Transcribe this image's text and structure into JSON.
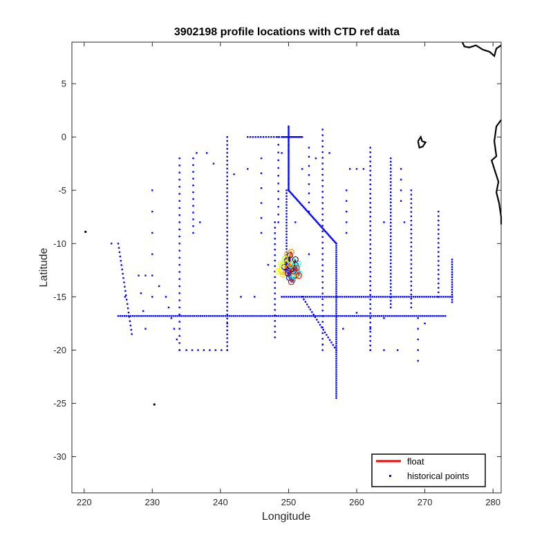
{
  "chart_data": {
    "type": "scatter",
    "title": "3902198 profile locations with CTD ref data",
    "xlabel": "Longitude",
    "ylabel": "Latitude",
    "xlim": [
      218.2,
      281.2
    ],
    "ylim": [
      -33.4,
      8.9
    ],
    "xticks": [
      220,
      230,
      240,
      250,
      260,
      270,
      280
    ],
    "yticks": [
      5,
      0,
      -5,
      -10,
      -15,
      -20,
      -25,
      -30
    ],
    "grid": false,
    "legend": {
      "position": "bottom-right",
      "entries": [
        {
          "label": "float",
          "color": "#ff0000",
          "style": "line"
        },
        {
          "label": "historical points",
          "color": "#0000ff",
          "style": "point"
        }
      ]
    },
    "colors": {
      "historical": "#0000ff",
      "coast": "#000000",
      "axes": "#262626"
    },
    "series": [
      {
        "name": "historical points",
        "tracks": [
          {
            "from": [
              225,
              -10
            ],
            "to": [
              227,
              -18.5
            ],
            "n": 22
          },
          {
            "from": [
              225,
              -16.8
            ],
            "to": [
              273,
              -16.8
            ],
            "n": 160
          },
          {
            "from": [
              234,
              -2
            ],
            "to": [
              234,
              -20
            ],
            "n": 28
          },
          {
            "from": [
              236,
              -2
            ],
            "to": [
              236,
              -9
            ],
            "n": 12
          },
          {
            "from": [
              241,
              0
            ],
            "to": [
              241,
              -20
            ],
            "n": 55
          },
          {
            "from": [
              248,
              -8
            ],
            "to": [
              248,
              -18.8
            ],
            "n": 22
          },
          {
            "from": [
              250,
              1
            ],
            "to": [
              250,
              -5
            ],
            "n": 40
          },
          {
            "from": [
              249.7,
              -5
            ],
            "to": [
              249.7,
              -13
            ],
            "n": 30
          },
          {
            "from": [
              250,
              -5
            ],
            "to": [
              257,
              -10
            ],
            "n": 55
          },
          {
            "from": [
              257,
              -10
            ],
            "to": [
              257,
              -24.5
            ],
            "n": 72
          },
          {
            "from": [
              249,
              -15
            ],
            "to": [
              274,
              -15
            ],
            "n": 80
          },
          {
            "from": [
              255,
              0.7
            ],
            "to": [
              255,
              -20
            ],
            "n": 40
          },
          {
            "from": [
              252,
              -15
            ],
            "to": [
              257,
              -20
            ],
            "n": 22
          },
          {
            "from": [
              262,
              -1
            ],
            "to": [
              262,
              -20
            ],
            "n": 45
          },
          {
            "from": [
              265,
              -2
            ],
            "to": [
              265,
              -16
            ],
            "n": 45
          },
          {
            "from": [
              268,
              -5
            ],
            "to": [
              268,
              -16
            ],
            "n": 28
          },
          {
            "from": [
              272,
              -7
            ],
            "to": [
              272,
              -15
            ],
            "n": 20
          },
          {
            "from": [
              274,
              -11.5
            ],
            "to": [
              274,
              -15.5
            ],
            "n": 18
          },
          {
            "from": [
              244,
              0
            ],
            "to": [
              249,
              0
            ],
            "n": 14
          },
          {
            "from": [
              249,
              0
            ],
            "to": [
              252,
              0
            ],
            "n": 16
          },
          {
            "from": [
              230,
              -5
            ],
            "to": [
              230,
              -15
            ],
            "n": 6
          },
          {
            "from": [
              232,
              -15
            ],
            "to": [
              234,
              -20
            ],
            "n": 6
          },
          {
            "from": [
              235,
              -20
            ],
            "to": [
              241,
              -20
            ],
            "n": 8
          },
          {
            "from": [
              259,
              -3
            ],
            "to": [
              261,
              -3
            ],
            "n": 3
          },
          {
            "from": [
              258.5,
              -5
            ],
            "to": [
              258.5,
              -9
            ],
            "n": 5
          },
          {
            "from": [
              253,
              -1
            ],
            "to": [
              253,
              -7
            ],
            "n": 8
          },
          {
            "from": [
              246,
              -2
            ],
            "to": [
              246,
              -9
            ],
            "n": 6
          },
          {
            "from": [
              248.5,
              0
            ],
            "to": [
              248.5,
              -8
            ],
            "n": 12
          },
          {
            "from": [
              266.5,
              -3
            ],
            "to": [
              266.5,
              -6
            ],
            "n": 4
          },
          {
            "from": [
              269,
              -18
            ],
            "to": [
              269,
              -21
            ],
            "n": 4
          },
          {
            "from": [
              262,
              -20
            ],
            "to": [
              266,
              -20
            ],
            "n": 3
          },
          {
            "from": [
              228,
              -13
            ],
            "to": [
              229,
              -18
            ],
            "n": 4
          }
        ],
        "points": [
          [
            245,
            -15
          ],
          [
            243,
            -15
          ],
          [
            229,
            -13
          ],
          [
            231,
            -14
          ],
          [
            224,
            -10
          ],
          [
            226,
            -15
          ],
          [
            237,
            -8
          ],
          [
            241,
            -17.5
          ],
          [
            239,
            -2.5
          ],
          [
            242,
            -3.5
          ],
          [
            244,
            -3
          ],
          [
            253,
            -11
          ],
          [
            264,
            -8
          ],
          [
            267,
            -8
          ],
          [
            269,
            -17
          ],
          [
            270,
            -17.5
          ],
          [
            262,
            -18
          ],
          [
            264,
            -17
          ],
          [
            238,
            -1.5
          ],
          [
            236.5,
            -1.5
          ],
          [
            255,
            -19.5
          ],
          [
            258,
            -18
          ],
          [
            260,
            -16.5
          ],
          [
            247,
            -12
          ],
          [
            252,
            -3
          ],
          [
            251,
            -8
          ],
          [
            249,
            -1.5
          ],
          [
            254,
            -2
          ],
          [
            256,
            -1.5
          ]
        ]
      },
      {
        "name": "float",
        "trajectory": [
          [
            249.4,
            -12.2
          ],
          [
            249.8,
            -11.6
          ],
          [
            250.2,
            -11.1
          ],
          [
            249.9,
            -12.5
          ],
          [
            250.1,
            -13.2
          ],
          [
            250.5,
            -12.4
          ],
          [
            251,
            -12.0
          ],
          [
            251.3,
            -12.7
          ],
          [
            250.6,
            -13.4
          ],
          [
            250.0,
            -12.9
          ],
          [
            250.8,
            -11.7
          ],
          [
            251.4,
            -11.9
          ],
          [
            251.6,
            -12.8
          ],
          [
            250.9,
            -13.1
          ],
          [
            250.3,
            -12.0
          ],
          [
            249.5,
            -11.4
          ],
          [
            248.9,
            -11.9
          ],
          [
            248.5,
            -12.6
          ],
          [
            249.2,
            -12.9
          ],
          [
            249.8,
            -11.0
          ],
          [
            250.4,
            -10.8
          ],
          [
            250.1,
            -12.2
          ],
          [
            251.2,
            -12.3
          ],
          [
            251.5,
            -13.0
          ],
          [
            250.4,
            -13.6
          ],
          [
            249.9,
            -12.8
          ],
          [
            250.7,
            -12.6
          ],
          [
            251.0,
            -11.5
          ]
        ],
        "colormap": "jet"
      }
    ],
    "coastline": [
      [
        [
          275.5,
          8.9
        ],
        [
          275.8,
          8.5
        ],
        [
          276.5,
          8.4
        ],
        [
          277.5,
          8.6
        ],
        [
          278.5,
          8.2
        ],
        [
          279.5,
          8.0
        ],
        [
          280.2,
          7.6
        ],
        [
          280.5,
          8.3
        ],
        [
          281.2,
          8.6
        ]
      ],
      [
        [
          281.2,
          1.6
        ],
        [
          280.5,
          1.0
        ],
        [
          280.2,
          -0.4
        ],
        [
          280.5,
          -1.8
        ],
        [
          279.8,
          -2.2
        ],
        [
          280.3,
          -3.2
        ],
        [
          280.8,
          -4.2
        ],
        [
          280.5,
          -5.2
        ],
        [
          280.9,
          -6.2
        ],
        [
          281.2,
          -7.5
        ],
        [
          281.2,
          -8.2
        ]
      ],
      [
        [
          269.0,
          -0.4
        ],
        [
          269.4,
          0.0
        ],
        [
          269.6,
          -0.4
        ],
        [
          270.1,
          -0.5
        ],
        [
          269.7,
          -0.9
        ],
        [
          269.2,
          -1.0
        ],
        [
          269.0,
          -0.4
        ]
      ]
    ],
    "islands": [
      [
        220.2,
        -8.9
      ],
      [
        230.3,
        -25.1
      ]
    ]
  }
}
